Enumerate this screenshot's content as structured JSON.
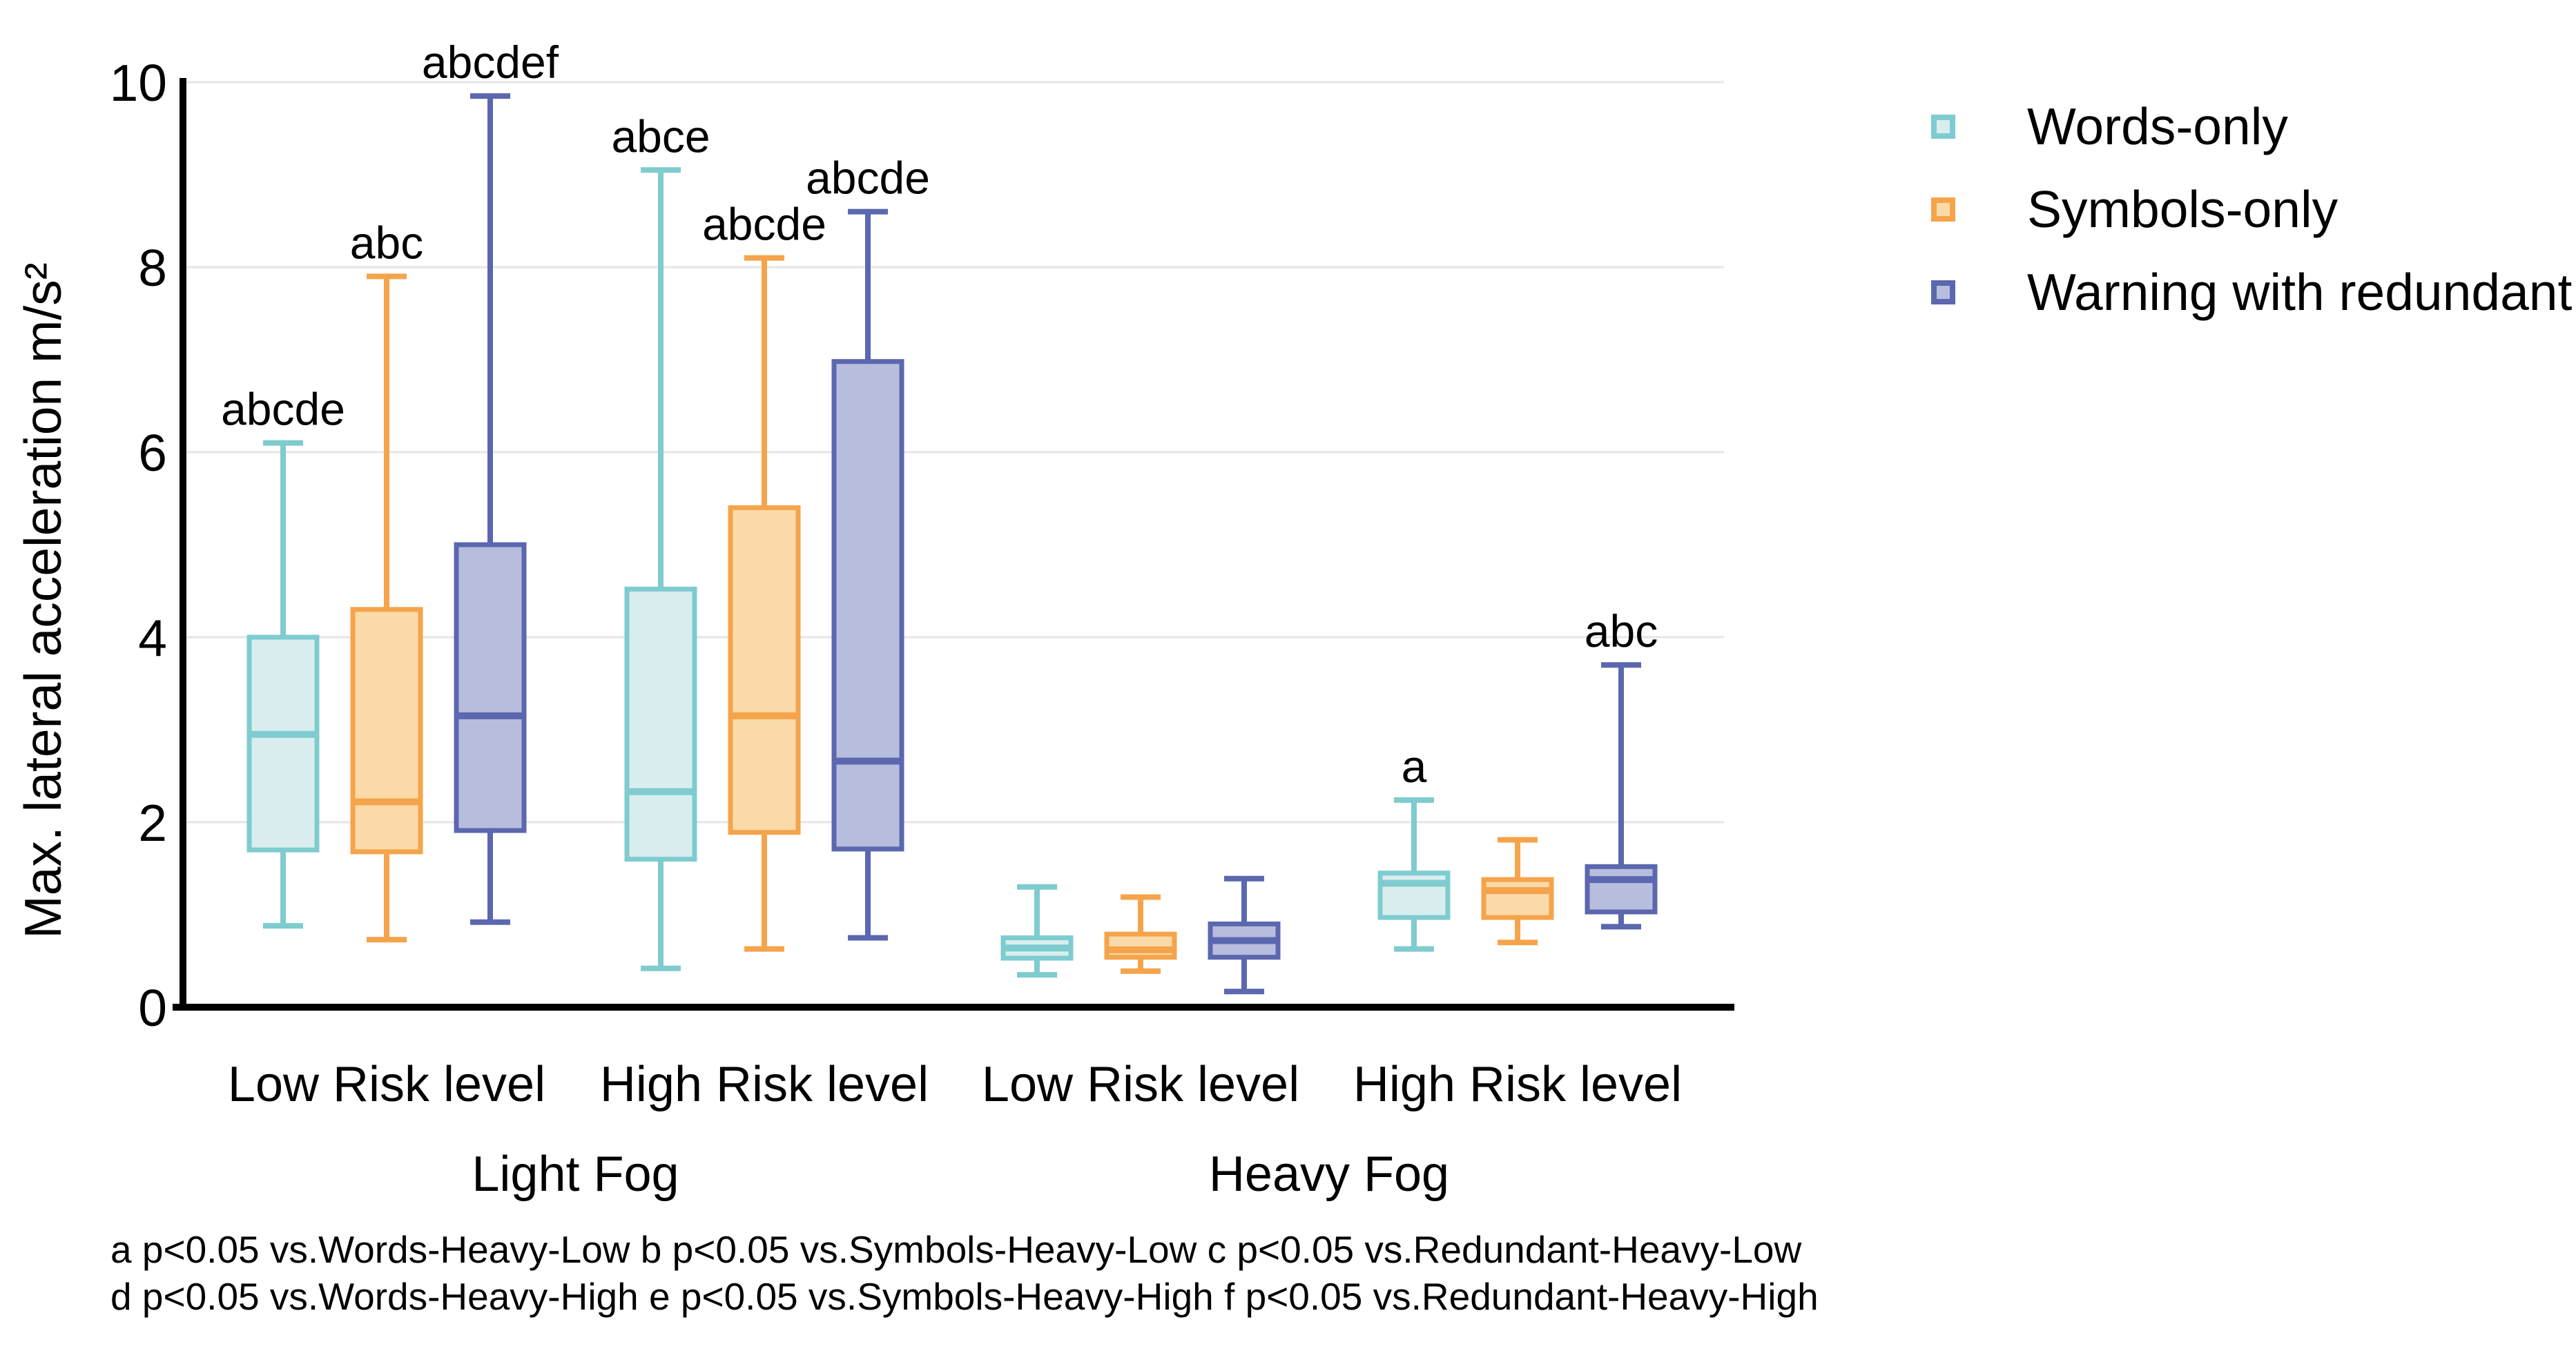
{
  "figure": {
    "background": "#ffffff",
    "axis_color": "#000000",
    "gridline_color": "#e6e6e6"
  },
  "chart_data": {
    "type": "boxplot",
    "title": "",
    "xlabel": "",
    "ylabel": "Max. lateral acceleration m/s²",
    "ylim": [
      0,
      10
    ],
    "yticks": [
      0,
      2,
      4,
      6,
      8,
      10
    ],
    "ytick_labels": [
      "0",
      "2",
      "4",
      "6",
      "8",
      "10"
    ],
    "grid": "horizontal",
    "legend_position": "top-right",
    "series": [
      {
        "name": "Words-only",
        "border": "#7ecccf",
        "fill": "#d9edee"
      },
      {
        "name": "Symbols-only",
        "border": "#f5a44b",
        "fill": "#fbdaa9"
      },
      {
        "name": "Warning with redundant",
        "border": "#5b67af",
        "fill": "#b7bddc"
      }
    ],
    "fog_groups": [
      "Light Fog",
      "Heavy Fog"
    ],
    "groups": [
      {
        "fog": "Light Fog",
        "risk": "Low Risk level",
        "boxes": [
          {
            "low": 0.88,
            "q1": 1.7,
            "med": 2.95,
            "q3": 4.0,
            "high": 6.1,
            "sig": "abcde"
          },
          {
            "low": 0.73,
            "q1": 1.68,
            "med": 2.22,
            "q3": 4.3,
            "high": 7.9,
            "sig": "abc"
          },
          {
            "low": 0.92,
            "q1": 1.91,
            "med": 3.15,
            "q3": 5.0,
            "high": 9.85,
            "sig": "abcdef"
          }
        ]
      },
      {
        "fog": "Light Fog",
        "risk": "High Risk level",
        "boxes": [
          {
            "low": 0.42,
            "q1": 1.6,
            "med": 2.33,
            "q3": 4.52,
            "high": 9.05,
            "sig": "abce"
          },
          {
            "low": 0.63,
            "q1": 1.89,
            "med": 3.15,
            "q3": 5.4,
            "high": 8.1,
            "sig": "abcde"
          },
          {
            "low": 0.75,
            "q1": 1.71,
            "med": 2.66,
            "q3": 6.98,
            "high": 8.6,
            "sig": "abcde"
          }
        ]
      },
      {
        "fog": "Heavy Fog",
        "risk": "Low Risk level",
        "boxes": [
          {
            "low": 0.35,
            "q1": 0.53,
            "med": 0.64,
            "q3": 0.75,
            "high": 1.3,
            "sig": ""
          },
          {
            "low": 0.39,
            "q1": 0.54,
            "med": 0.62,
            "q3": 0.79,
            "high": 1.19,
            "sig": ""
          },
          {
            "low": 0.17,
            "q1": 0.54,
            "med": 0.72,
            "q3": 0.9,
            "high": 1.39,
            "sig": ""
          }
        ]
      },
      {
        "fog": "Heavy Fog",
        "risk": "High Risk level",
        "boxes": [
          {
            "low": 0.63,
            "q1": 0.97,
            "med": 1.34,
            "q3": 1.45,
            "high": 2.24,
            "sig": "a"
          },
          {
            "low": 0.7,
            "q1": 0.97,
            "med": 1.26,
            "q3": 1.38,
            "high": 1.81,
            "sig": ""
          },
          {
            "low": 0.87,
            "q1": 1.03,
            "med": 1.38,
            "q3": 1.52,
            "high": 3.7,
            "sig": "abc"
          }
        ]
      }
    ],
    "footnote": [
      "a p<0.05 vs.Words-Heavy-Low b p<0.05 vs.Symbols-Heavy-Low c p<0.05 vs.Redundant-Heavy-Low",
      "d p<0.05 vs.Words-Heavy-High e p<0.05 vs.Symbols-Heavy-High f p<0.05 vs.Redundant-Heavy-High"
    ]
  }
}
